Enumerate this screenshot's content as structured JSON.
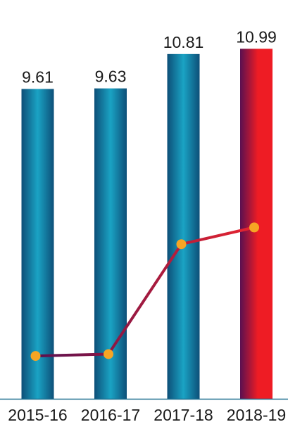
{
  "chart_data": {
    "type": "bar",
    "categories": [
      "2015-16",
      "2016-17",
      "2017-18",
      "2018-19"
    ],
    "values": [
      9.61,
      9.63,
      10.81,
      10.99
    ],
    "value_labels": [
      "9.61",
      "9.63",
      "10.81",
      "10.99"
    ],
    "overlay_line": {
      "type": "line",
      "color": "#e8242f",
      "marker_color": "#f6a524"
    },
    "title": "",
    "xlabel": "",
    "ylabel": "",
    "grid": false,
    "colors": {
      "bar_dark": "#0d4f78",
      "bar_light": "#1aa3c4",
      "highlight_bar_left": "#5a1050",
      "highlight_bar_right": "#ee1c24",
      "line_start": "#5a1050",
      "line_end": "#e8242f",
      "marker": "#f6a524",
      "axis": "#1f6f8f"
    }
  }
}
